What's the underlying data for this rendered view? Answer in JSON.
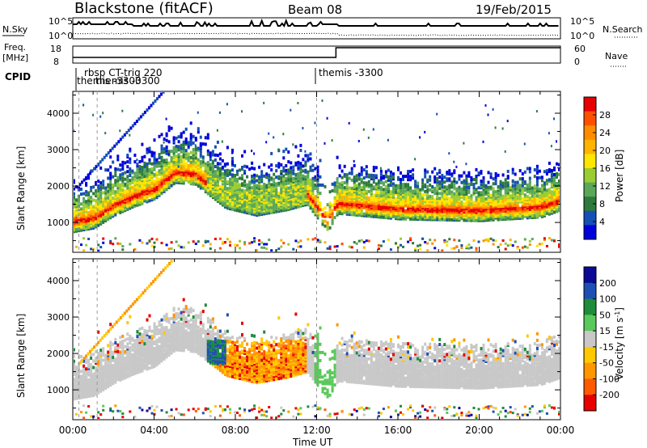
{
  "header": {
    "title": "Blackstone (fitACF)",
    "beam": "Beam 08",
    "date": "19/Feb/2015"
  },
  "strip_panels": {
    "nsky": {
      "label": "N.Sky",
      "left_ticks": [
        "10^5",
        "10^0"
      ],
      "right_ticks": [
        "10^5",
        "10^0"
      ],
      "right_label": "N.Search"
    },
    "freq": {
      "label": "Freq.",
      "unit_label": "[MHz]",
      "left_ticks": [
        "18",
        "8"
      ],
      "right_ticks": [
        "60",
        "0"
      ],
      "right_label": "Nave"
    },
    "cpid": {
      "label": "CPID",
      "entries": [
        "rbsp CT-trig 220",
        "themis -3300",
        "themis -3300",
        "themis -3300"
      ]
    }
  },
  "colorbars": {
    "power": {
      "title": "Power [dB]",
      "ticks": [
        "28",
        "24",
        "20",
        "16",
        "12",
        "8",
        "4"
      ],
      "colors": [
        "#0000dc",
        "#1550b4",
        "#2d7a3c",
        "#5aa75a",
        "#9acd32",
        "#ffe600",
        "#ffb400",
        "#ff8c00",
        "#ff5000",
        "#e60000"
      ]
    },
    "velocity": {
      "title": "Velocity [m s",
      "superscript": "-1",
      "title_close": "]",
      "ticks": [
        "200",
        "100",
        "50",
        "15",
        "-15",
        "-50",
        "-100",
        "-200"
      ],
      "colors": [
        "#e60000",
        "#ff5a00",
        "#ff9600",
        "#ffc800",
        "#c8c8c8",
        "#5ac85a",
        "#1e8c3c",
        "#1e50b4",
        "#0a0a96"
      ]
    }
  },
  "panels": {
    "power_ylabel": "Slant Range [km]",
    "velocity_ylabel": "Slant Range [km]",
    "xlabel": "Time UT"
  },
  "chart_data": [
    {
      "type": "heatmap",
      "name": "power",
      "ylabel": "Slant Range [km]",
      "xlabel": "",
      "x_ticks": [
        "00:00",
        "04:00",
        "08:00",
        "12:00",
        "16:00",
        "20:00",
        "00:00"
      ],
      "y_ticks": [
        1000,
        2000,
        3000,
        4000
      ],
      "xlim_hours": [
        0,
        24
      ],
      "ylim_km": [
        180,
        4600
      ],
      "colorbar_range_db": [
        0,
        30
      ],
      "ridge_track": [
        {
          "t": 0.0,
          "range_km": 1050
        },
        {
          "t": 1.0,
          "range_km": 1150
        },
        {
          "t": 2.0,
          "range_km": 1500
        },
        {
          "t": 3.0,
          "range_km": 1750
        },
        {
          "t": 4.0,
          "range_km": 1950
        },
        {
          "t": 5.0,
          "range_km": 2400
        },
        {
          "t": 6.0,
          "range_km": 2350
        },
        {
          "t": 7.5,
          "range_km": 1700
        },
        {
          "t": 9.0,
          "range_km": 1500
        },
        {
          "t": 10.5,
          "range_km": 1650
        },
        {
          "t": 11.5,
          "range_km": 1800
        },
        {
          "t": 12.5,
          "range_km": 1050
        },
        {
          "t": 13.0,
          "range_km": 1550
        },
        {
          "t": 16.0,
          "range_km": 1400
        },
        {
          "t": 20.0,
          "range_km": 1350
        },
        {
          "t": 23.0,
          "range_km": 1450
        },
        {
          "t": 24.0,
          "range_km": 1650
        }
      ]
    },
    {
      "type": "heatmap",
      "name": "velocity",
      "ylabel": "Slant Range [km]",
      "xlabel": "Time UT",
      "x_ticks": [
        "00:00",
        "04:00",
        "08:00",
        "12:00",
        "16:00",
        "20:00",
        "00:00"
      ],
      "y_ticks": [
        1000,
        2000,
        3000,
        4000
      ],
      "xlim_hours": [
        0,
        24
      ],
      "ylim_km": [
        180,
        4600
      ],
      "colorbar_range_ms": [
        -200,
        200
      ]
    }
  ]
}
